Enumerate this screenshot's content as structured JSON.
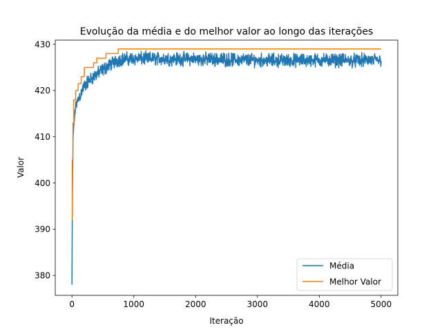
{
  "chart_data": {
    "type": "line",
    "title": "Evolução da média e do melhor valor ao longo das iterações",
    "xlabel": "Iteração",
    "ylabel": "Valor",
    "xlim": [
      -270,
      5270
    ],
    "ylim": [
      375.7,
      430.9
    ],
    "xticks": [
      0,
      1000,
      2000,
      3000,
      4000,
      5000
    ],
    "yticks": [
      380,
      390,
      400,
      410,
      420,
      430
    ],
    "grid": false,
    "legend_position": "bottom-right",
    "series": [
      {
        "name": "Média",
        "color": "#1f77b4",
        "style": "noisy",
        "trend_x": [
          0,
          5,
          10,
          20,
          40,
          60,
          100,
          150,
          200,
          300,
          400,
          500,
          600,
          700,
          800,
          1000,
          1500,
          2000,
          2500,
          3000,
          3500,
          4000,
          4500,
          5000
        ],
        "trend_y": [
          378,
          392,
          402,
          410,
          414,
          416.5,
          418,
          419.5,
          421,
          422.5,
          423.5,
          424.5,
          425.5,
          426.3,
          426.8,
          426.9,
          426.9,
          426.8,
          426.7,
          426.6,
          426.5,
          426.6,
          426.5,
          426.6
        ],
        "noise_amplitude": 1.1
      },
      {
        "name": "Melhor Valor",
        "color": "#ff7f0e",
        "style": "step",
        "x": [
          0,
          5,
          15,
          30,
          60,
          100,
          150,
          200,
          350,
          400,
          550,
          750,
          5000
        ],
        "y": [
          392,
          405,
          413,
          418,
          420,
          421.5,
          423,
          425,
          426,
          427,
          428,
          429,
          429
        ]
      }
    ]
  }
}
